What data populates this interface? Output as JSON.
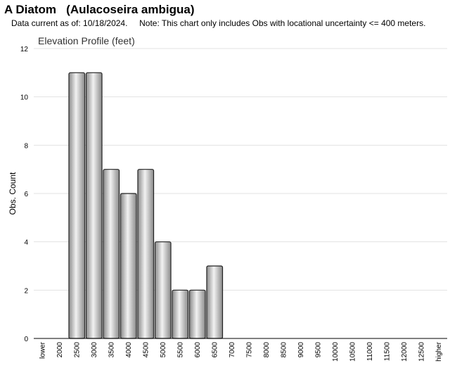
{
  "header": {
    "title": "A Diatom   (Aulacoseira ambigua)",
    "subtitle": "Data current as of: 10/18/2024.     Note: This chart only includes Obs with locational uncertainty <= 400 meters."
  },
  "chart_data": {
    "type": "bar",
    "title": "Elevation Profile (feet)",
    "xlabel": "",
    "ylabel": "Obs. Count",
    "ylim": [
      0,
      12
    ],
    "yticks": [
      0,
      2,
      4,
      6,
      8,
      10,
      12
    ],
    "grid": true,
    "legend": "none",
    "categories": [
      "lower",
      "2000",
      "2500",
      "3000",
      "3500",
      "4000",
      "4500",
      "5000",
      "5500",
      "6000",
      "6500",
      "7000",
      "7500",
      "8000",
      "8500",
      "9000",
      "9500",
      "10000",
      "10500",
      "11000",
      "11500",
      "12000",
      "12500",
      "higher"
    ],
    "values": [
      0,
      0,
      11,
      11,
      7,
      6,
      7,
      4,
      2,
      2,
      3,
      0,
      0,
      0,
      0,
      0,
      0,
      0,
      0,
      0,
      0,
      0,
      0,
      0
    ],
    "colors": {
      "bar_light": "#f2f2f2",
      "bar_dark": "#8a8a8a",
      "bar_stroke": "#222222",
      "grid": "#e3e3e3",
      "axis": "#000000"
    }
  }
}
